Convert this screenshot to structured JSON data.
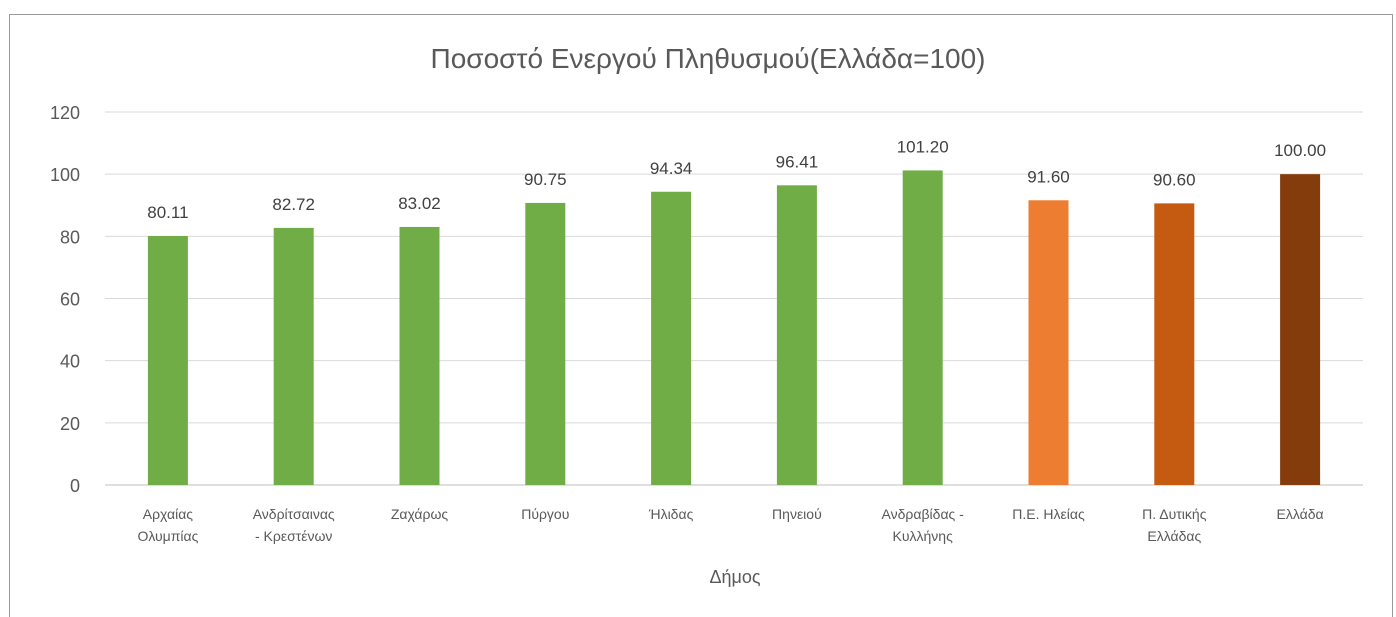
{
  "chart_data": {
    "type": "bar",
    "title": "Ποσοστό Ενεργού Πληθυσμού(Ελλάδα=100)",
    "xlabel": "Δήμος",
    "ylabel": "",
    "ylim": [
      0,
      120
    ],
    "yticks": [
      0,
      20,
      40,
      60,
      80,
      100,
      120
    ],
    "grid": true,
    "legend": "none",
    "categories": [
      [
        "Αρχαίας",
        "Ολυμπίας"
      ],
      [
        "Ανδρίτσαινας",
        "- Κρεστένων"
      ],
      [
        "Ζαχάρως"
      ],
      [
        "Πύργου"
      ],
      [
        "Ήλιδας"
      ],
      [
        "Πηνειού"
      ],
      [
        "Ανδραβίδας -",
        "Κυλλήνης"
      ],
      [
        "Π.Ε. Ηλείας"
      ],
      [
        "Π. Δυτικής",
        "Ελλάδας"
      ],
      [
        "Ελλάδα"
      ]
    ],
    "values": [
      80.11,
      82.72,
      83.02,
      90.75,
      94.34,
      96.41,
      101.2,
      91.6,
      90.6,
      100.0
    ],
    "value_labels": [
      "80.11",
      "82.72",
      "83.02",
      "90.75",
      "94.34",
      "96.41",
      "101.20",
      "91.60",
      "90.60",
      "100.00"
    ],
    "bar_colors": [
      "#70ad47",
      "#70ad47",
      "#70ad47",
      "#70ad47",
      "#70ad47",
      "#70ad47",
      "#70ad47",
      "#ed7d31",
      "#c55a11",
      "#843c0c"
    ]
  },
  "colors": {
    "grid": "#d9d9d9",
    "axis": "#bfbfbf",
    "text": "#595959",
    "caption": "#2e74b5"
  }
}
